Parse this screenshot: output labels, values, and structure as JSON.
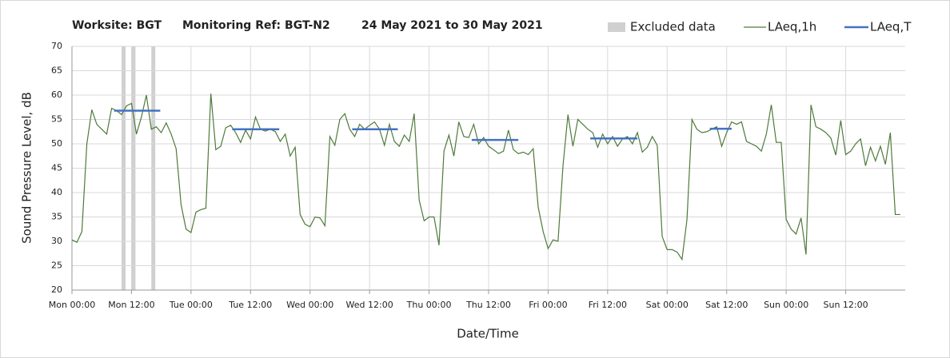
{
  "chart_data": {
    "type": "line",
    "title": [
      "Worksite: BGT",
      "Monitoring Ref: BGT-N2",
      "24 May 2021 to 30 May 2021"
    ],
    "xlabel": "Date/Time",
    "ylabel": "Sound Pressure Level, dB",
    "xlim": [
      0,
      168
    ],
    "ylim": [
      20,
      70
    ],
    "yticks": [
      20,
      25,
      30,
      35,
      40,
      45,
      50,
      55,
      60,
      65,
      70
    ],
    "xticks": [
      {
        "value": 0,
        "label": "Mon 00:00"
      },
      {
        "value": 12,
        "label": "Mon 12:00"
      },
      {
        "value": 24,
        "label": "Tue 00:00"
      },
      {
        "value": 36,
        "label": "Tue 12:00"
      },
      {
        "value": 48,
        "label": "Wed 00:00"
      },
      {
        "value": 60,
        "label": "Wed 12:00"
      },
      {
        "value": 72,
        "label": "Thu 00:00"
      },
      {
        "value": 84,
        "label": "Thu 12:00"
      },
      {
        "value": 96,
        "label": "Fri 00:00"
      },
      {
        "value": 108,
        "label": "Fri 12:00"
      },
      {
        "value": 120,
        "label": "Sat 00:00"
      },
      {
        "value": 132,
        "label": "Sat 12:00"
      },
      {
        "value": 144,
        "label": "Sun 00:00"
      },
      {
        "value": 156,
        "label": "Sun 12:00"
      }
    ],
    "grid": true,
    "legend": "top-right",
    "excluded": {
      "name": "Excluded data",
      "color": "#d0d0d0",
      "ranges": [
        [
          10,
          10.8
        ],
        [
          12,
          12.8
        ],
        [
          16,
          16.8
        ]
      ]
    },
    "series": [
      {
        "name": "LAeq,1h",
        "color": "#4e7a3a",
        "x": [
          0,
          1,
          2,
          3,
          4,
          5,
          6,
          7,
          8,
          9,
          10,
          11,
          12,
          13,
          14,
          15,
          16,
          17,
          18,
          19,
          20,
          21,
          22,
          23,
          24,
          25,
          26,
          27,
          28,
          29,
          30,
          31,
          32,
          33,
          34,
          35,
          36,
          37,
          38,
          39,
          40,
          41,
          42,
          43,
          44,
          45,
          46,
          47,
          48,
          49,
          50,
          51,
          52,
          53,
          54,
          55,
          56,
          57,
          58,
          59,
          60,
          61,
          62,
          63,
          64,
          65,
          66,
          67,
          68,
          69,
          70,
          71,
          72,
          73,
          74,
          75,
          76,
          77,
          78,
          79,
          80,
          81,
          82,
          83,
          84,
          85,
          86,
          87,
          88,
          89,
          90,
          91,
          92,
          93,
          94,
          95,
          96,
          97,
          98,
          99,
          100,
          101,
          102,
          103,
          104,
          105,
          106,
          107,
          108,
          109,
          110,
          111,
          112,
          113,
          114,
          115,
          116,
          117,
          118,
          119,
          120,
          121,
          122,
          123,
          124,
          125,
          126,
          127,
          128,
          129,
          130,
          131,
          132,
          133,
          134,
          135,
          136,
          137,
          138,
          139,
          140,
          141,
          142,
          143,
          144,
          145,
          146,
          147,
          148,
          149,
          150,
          151,
          152,
          153,
          154,
          155,
          156,
          157,
          158,
          159,
          160,
          161,
          162,
          163,
          164,
          165,
          166,
          167
        ],
        "values": [
          30.3,
          29.8,
          32,
          50,
          57,
          54,
          53,
          52,
          57.3,
          56.8,
          56,
          57.8,
          58.3,
          52,
          55.5,
          60,
          53,
          53.5,
          52.3,
          54.3,
          52,
          49,
          37.5,
          32.5,
          31.8,
          36,
          36.5,
          36.8,
          60.3,
          48.8,
          49.5,
          53.3,
          53.8,
          52.3,
          50.3,
          52.8,
          51,
          55.5,
          53,
          52.6,
          53,
          52.5,
          50.5,
          52,
          47.5,
          49.3,
          35.5,
          33.5,
          33,
          35,
          34.8,
          33.2,
          51.5,
          49.7,
          55,
          56.2,
          53,
          51.5,
          54,
          53,
          53.8,
          54.5,
          53,
          49.7,
          54,
          50.5,
          49.5,
          51.8,
          50.5,
          56.2,
          38.5,
          34.2,
          35,
          35,
          29.2,
          48.5,
          51.8,
          47.5,
          54.5,
          51.5,
          51.3,
          54,
          50,
          51.3,
          49.5,
          48.8,
          48,
          48.5,
          52.8,
          48.8,
          48,
          48.3,
          47.8,
          49,
          37,
          32,
          28.5,
          30.3,
          30,
          45.5,
          56,
          49.5,
          55,
          54,
          53,
          52.3,
          49.3,
          52,
          50,
          51.5,
          49.5,
          51,
          51.5,
          50,
          52.3,
          48.3,
          49.3,
          51.5,
          49.7,
          31,
          28.3,
          28.3,
          27.8,
          26.3,
          34.5,
          55,
          53,
          52.3,
          52.5,
          53,
          53.5,
          49.5,
          52.3,
          54.5,
          54,
          54.5,
          50.5,
          50,
          49.5,
          48.5,
          52,
          58,
          50.3,
          50.3,
          34.5,
          32.5,
          31.5,
          34.8,
          27.3,
          58,
          53.5,
          53,
          52.3,
          51.2,
          47.7,
          54.8,
          47.8,
          48.5,
          50,
          51,
          45.5,
          49.3,
          46.5,
          49.5,
          45.8,
          52.3,
          35.5,
          35.5
        ]
      },
      {
        "name": "LAeq,T",
        "color": "#4472c4",
        "segments": [
          {
            "start": 8.5,
            "end": 17.8,
            "value": 56.8
          },
          {
            "start": 32.3,
            "end": 41.8,
            "value": 53
          },
          {
            "start": 56.5,
            "end": 65.7,
            "value": 53
          },
          {
            "start": 80.6,
            "end": 90,
            "value": 50.8
          },
          {
            "start": 104.5,
            "end": 114,
            "value": 51.1
          },
          {
            "start": 128.6,
            "end": 133,
            "value": 53.1
          }
        ]
      }
    ]
  }
}
